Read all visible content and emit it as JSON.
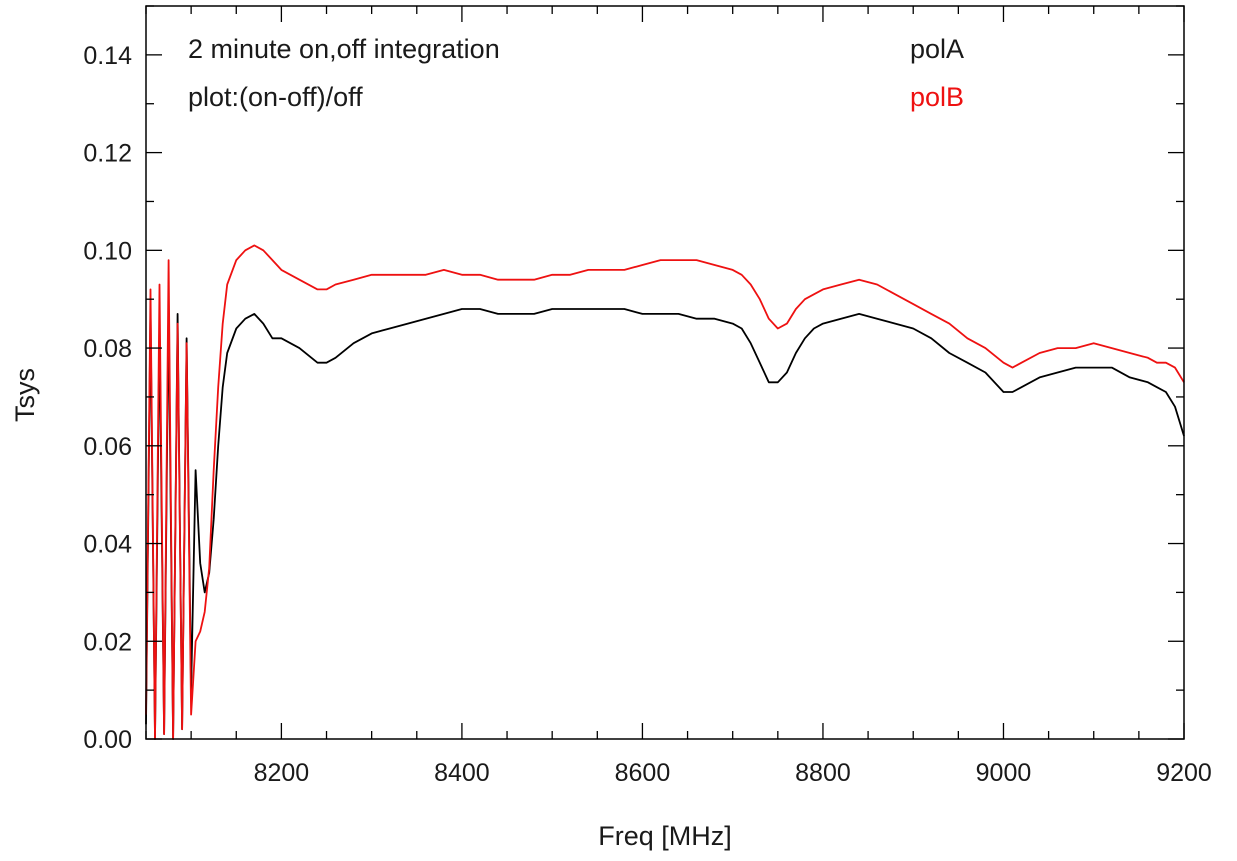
{
  "chart_data": {
    "type": "line",
    "xlabel": "Freq [MHz]",
    "ylabel": "Tsys",
    "xlim": [
      8050,
      9200
    ],
    "ylim": [
      0.0,
      0.15
    ],
    "x_ticks": [
      8200,
      8400,
      8600,
      8800,
      9000,
      9200
    ],
    "x_tick_labels": [
      "8200",
      "8400",
      "8600",
      "8800",
      "9000",
      "9200"
    ],
    "y_ticks": [
      0.0,
      0.02,
      0.04,
      0.06,
      0.08,
      0.1,
      0.12,
      0.14
    ],
    "y_tick_labels": [
      "0.00",
      "0.02",
      "0.04",
      "0.06",
      "0.08",
      "0.10",
      "0.12",
      "0.14"
    ],
    "grid": false,
    "annotations": [
      "2 minute on,off integration",
      "plot:(on-off)/off"
    ],
    "legend_position": "top-right",
    "series": [
      {
        "name": "polA",
        "color": "#000000",
        "x": [
          8050,
          8055,
          8060,
          8065,
          8070,
          8075,
          8080,
          8085,
          8090,
          8095,
          8100,
          8105,
          8110,
          8115,
          8120,
          8125,
          8130,
          8135,
          8140,
          8150,
          8160,
          8170,
          8180,
          8190,
          8200,
          8220,
          8240,
          8250,
          8260,
          8280,
          8300,
          8320,
          8340,
          8360,
          8380,
          8400,
          8420,
          8440,
          8460,
          8480,
          8500,
          8520,
          8540,
          8560,
          8580,
          8600,
          8620,
          8640,
          8660,
          8680,
          8700,
          8710,
          8720,
          8730,
          8740,
          8750,
          8760,
          8770,
          8780,
          8790,
          8800,
          8820,
          8840,
          8860,
          8880,
          8900,
          8920,
          8940,
          8960,
          8980,
          9000,
          9010,
          9020,
          9040,
          9060,
          9080,
          9100,
          9120,
          9140,
          9160,
          9170,
          9180,
          9190,
          9200
        ],
        "y": [
          0.003,
          0.088,
          0.0,
          0.085,
          0.001,
          0.089,
          0.0,
          0.087,
          0.002,
          0.082,
          0.01,
          0.055,
          0.036,
          0.03,
          0.034,
          0.045,
          0.06,
          0.072,
          0.079,
          0.084,
          0.086,
          0.087,
          0.085,
          0.082,
          0.082,
          0.08,
          0.077,
          0.077,
          0.078,
          0.081,
          0.083,
          0.084,
          0.085,
          0.086,
          0.087,
          0.088,
          0.088,
          0.087,
          0.087,
          0.087,
          0.088,
          0.088,
          0.088,
          0.088,
          0.088,
          0.087,
          0.087,
          0.087,
          0.086,
          0.086,
          0.085,
          0.084,
          0.081,
          0.077,
          0.073,
          0.073,
          0.075,
          0.079,
          0.082,
          0.084,
          0.085,
          0.086,
          0.087,
          0.086,
          0.085,
          0.084,
          0.082,
          0.079,
          0.077,
          0.075,
          0.071,
          0.071,
          0.072,
          0.074,
          0.075,
          0.076,
          0.076,
          0.076,
          0.074,
          0.073,
          0.072,
          0.071,
          0.068,
          0.062
        ]
      },
      {
        "name": "polB",
        "color": "#ee1111",
        "x": [
          8050,
          8055,
          8060,
          8065,
          8070,
          8075,
          8080,
          8085,
          8090,
          8095,
          8100,
          8105,
          8110,
          8115,
          8120,
          8125,
          8130,
          8135,
          8140,
          8150,
          8160,
          8170,
          8180,
          8190,
          8200,
          8220,
          8240,
          8250,
          8260,
          8280,
          8300,
          8320,
          8340,
          8360,
          8380,
          8400,
          8420,
          8440,
          8460,
          8480,
          8500,
          8520,
          8540,
          8560,
          8580,
          8600,
          8620,
          8640,
          8660,
          8680,
          8700,
          8710,
          8720,
          8730,
          8740,
          8750,
          8760,
          8770,
          8780,
          8790,
          8800,
          8820,
          8840,
          8860,
          8880,
          8900,
          8920,
          8940,
          8960,
          8980,
          9000,
          9010,
          9020,
          9040,
          9060,
          9080,
          9100,
          9120,
          9140,
          9160,
          9170,
          9180,
          9190,
          9200
        ],
        "y": [
          0.005,
          0.092,
          0.0,
          0.093,
          0.001,
          0.098,
          0.0,
          0.085,
          0.002,
          0.081,
          0.005,
          0.02,
          0.022,
          0.026,
          0.035,
          0.055,
          0.072,
          0.085,
          0.093,
          0.098,
          0.1,
          0.101,
          0.1,
          0.098,
          0.096,
          0.094,
          0.092,
          0.092,
          0.093,
          0.094,
          0.095,
          0.095,
          0.095,
          0.095,
          0.096,
          0.095,
          0.095,
          0.094,
          0.094,
          0.094,
          0.095,
          0.095,
          0.096,
          0.096,
          0.096,
          0.097,
          0.098,
          0.098,
          0.098,
          0.097,
          0.096,
          0.095,
          0.093,
          0.09,
          0.086,
          0.084,
          0.085,
          0.088,
          0.09,
          0.091,
          0.092,
          0.093,
          0.094,
          0.093,
          0.091,
          0.089,
          0.087,
          0.085,
          0.082,
          0.08,
          0.077,
          0.076,
          0.077,
          0.079,
          0.08,
          0.08,
          0.081,
          0.08,
          0.079,
          0.078,
          0.077,
          0.077,
          0.076,
          0.073
        ]
      }
    ]
  }
}
